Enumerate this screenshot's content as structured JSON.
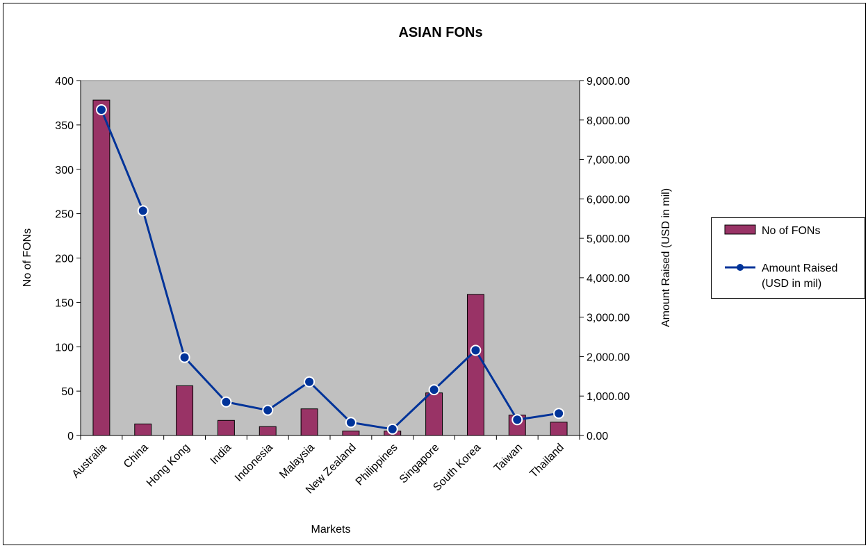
{
  "chart_data": {
    "type": "bar",
    "title": "ASIAN FONs",
    "xlabel": "Markets",
    "ylabel": "No of FONs",
    "y2label": "Amount Raised (USD in mil)",
    "categories": [
      "Australia",
      "China",
      "Hong Kong",
      "India",
      "Indonesia",
      "Malaysia",
      "New Zealand",
      "Philippines",
      "Singapore",
      "South Korea",
      "Taiwan",
      "Thailand"
    ],
    "series": [
      {
        "name": "No of FONs",
        "type": "bar",
        "axis": "left",
        "color": "#993366",
        "values": [
          378,
          13,
          56,
          17,
          10,
          30,
          5,
          5,
          48,
          159,
          23,
          15
        ]
      },
      {
        "name": "Amount Raised (USD in mil)",
        "type": "line",
        "axis": "right",
        "color": "#003399",
        "values": [
          8260,
          5700,
          1980,
          850,
          640,
          1360,
          330,
          160,
          1160,
          2160,
          400,
          560
        ]
      }
    ],
    "ylim": [
      0,
      400
    ],
    "y2lim": [
      0,
      9000
    ],
    "yticks": [
      "0",
      "50",
      "100",
      "150",
      "200",
      "250",
      "300",
      "350",
      "400"
    ],
    "y2ticks": [
      "0.00",
      "1,000.00",
      "2,000.00",
      "3,000.00",
      "4,000.00",
      "5,000.00",
      "6,000.00",
      "7,000.00",
      "8,000.00",
      "9,000.00"
    ],
    "legend": {
      "position": "right",
      "entries": [
        {
          "lines": [
            "No of FONs"
          ]
        },
        {
          "lines": [
            "Amount Raised",
            "(USD in mil)"
          ]
        }
      ]
    },
    "plot_background": "#c0c0c0",
    "grid": false
  }
}
